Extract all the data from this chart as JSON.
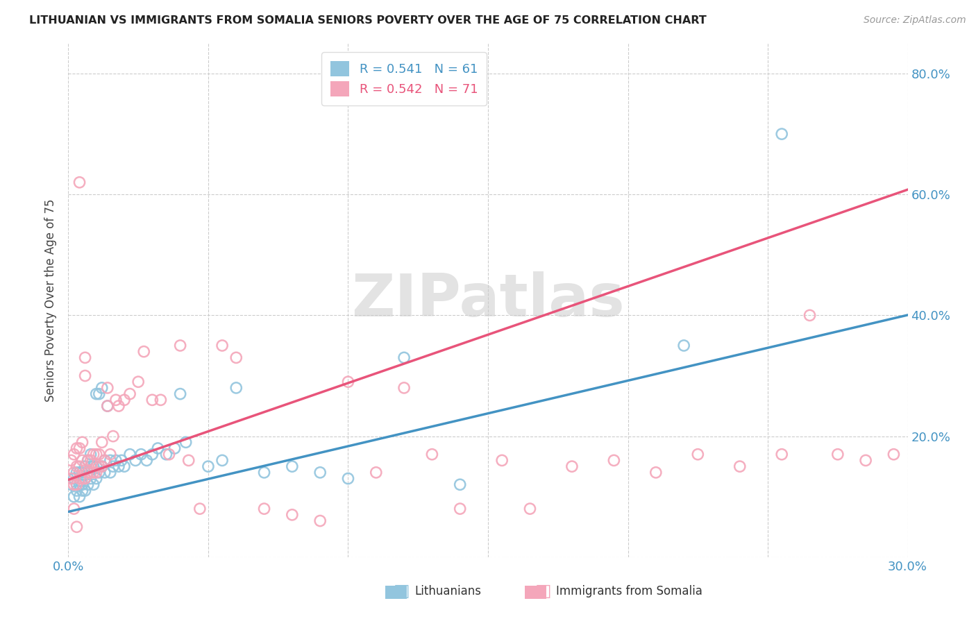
{
  "title": "LITHUANIAN VS IMMIGRANTS FROM SOMALIA SENIORS POVERTY OVER THE AGE OF 75 CORRELATION CHART",
  "source": "Source: ZipAtlas.com",
  "ylabel": "Seniors Poverty Over the Age of 75",
  "xlim": [
    0.0,
    0.3
  ],
  "ylim": [
    0.0,
    0.85
  ],
  "xticks": [
    0.0,
    0.05,
    0.1,
    0.15,
    0.2,
    0.25,
    0.3
  ],
  "yticks": [
    0.0,
    0.2,
    0.4,
    0.6,
    0.8
  ],
  "blue_color": "#92c5de",
  "pink_color": "#f4a6ba",
  "blue_line_color": "#4393c3",
  "pink_line_color": "#e8547a",
  "blue_line_intercept": 0.075,
  "blue_line_slope": 1.085,
  "pink_line_intercept": 0.128,
  "pink_line_slope": 1.6,
  "legend_label_blue": "Lithuanians",
  "legend_label_pink": "Immigrants from Somalia",
  "watermark": "ZIPatlas",
  "blue_scatter_x": [
    0.001,
    0.002,
    0.002,
    0.003,
    0.003,
    0.003,
    0.004,
    0.004,
    0.004,
    0.005,
    0.005,
    0.005,
    0.006,
    0.006,
    0.006,
    0.007,
    0.007,
    0.007,
    0.008,
    0.008,
    0.008,
    0.009,
    0.009,
    0.01,
    0.01,
    0.01,
    0.011,
    0.011,
    0.012,
    0.012,
    0.013,
    0.013,
    0.014,
    0.015,
    0.015,
    0.016,
    0.017,
    0.018,
    0.019,
    0.02,
    0.022,
    0.024,
    0.026,
    0.028,
    0.03,
    0.032,
    0.035,
    0.038,
    0.04,
    0.042,
    0.05,
    0.055,
    0.06,
    0.07,
    0.08,
    0.09,
    0.1,
    0.12,
    0.14,
    0.22,
    0.255
  ],
  "blue_scatter_y": [
    0.12,
    0.1,
    0.13,
    0.11,
    0.12,
    0.14,
    0.1,
    0.12,
    0.14,
    0.11,
    0.12,
    0.14,
    0.11,
    0.13,
    0.15,
    0.12,
    0.14,
    0.16,
    0.13,
    0.15,
    0.17,
    0.12,
    0.15,
    0.13,
    0.15,
    0.27,
    0.14,
    0.27,
    0.15,
    0.28,
    0.14,
    0.16,
    0.25,
    0.14,
    0.16,
    0.15,
    0.16,
    0.15,
    0.16,
    0.15,
    0.17,
    0.16,
    0.17,
    0.16,
    0.17,
    0.18,
    0.17,
    0.18,
    0.27,
    0.19,
    0.15,
    0.16,
    0.28,
    0.14,
    0.15,
    0.14,
    0.13,
    0.33,
    0.12,
    0.35,
    0.7
  ],
  "pink_scatter_x": [
    0.001,
    0.001,
    0.002,
    0.002,
    0.002,
    0.003,
    0.003,
    0.003,
    0.004,
    0.004,
    0.004,
    0.005,
    0.005,
    0.005,
    0.006,
    0.006,
    0.006,
    0.007,
    0.007,
    0.008,
    0.008,
    0.009,
    0.009,
    0.01,
    0.01,
    0.011,
    0.011,
    0.012,
    0.012,
    0.013,
    0.014,
    0.014,
    0.015,
    0.016,
    0.017,
    0.018,
    0.02,
    0.022,
    0.025,
    0.027,
    0.03,
    0.033,
    0.036,
    0.04,
    0.043,
    0.047,
    0.055,
    0.06,
    0.07,
    0.08,
    0.09,
    0.1,
    0.11,
    0.12,
    0.13,
    0.14,
    0.155,
    0.165,
    0.18,
    0.195,
    0.21,
    0.225,
    0.24,
    0.255,
    0.265,
    0.275,
    0.285,
    0.295,
    0.002,
    0.003,
    0.004
  ],
  "pink_scatter_y": [
    0.13,
    0.16,
    0.12,
    0.14,
    0.17,
    0.12,
    0.15,
    0.18,
    0.13,
    0.15,
    0.18,
    0.13,
    0.16,
    0.19,
    0.13,
    0.3,
    0.33,
    0.14,
    0.16,
    0.14,
    0.16,
    0.14,
    0.17,
    0.14,
    0.17,
    0.15,
    0.17,
    0.15,
    0.19,
    0.16,
    0.25,
    0.28,
    0.17,
    0.2,
    0.26,
    0.25,
    0.26,
    0.27,
    0.29,
    0.34,
    0.26,
    0.26,
    0.17,
    0.35,
    0.16,
    0.08,
    0.35,
    0.33,
    0.08,
    0.07,
    0.06,
    0.29,
    0.14,
    0.28,
    0.17,
    0.08,
    0.16,
    0.08,
    0.15,
    0.16,
    0.14,
    0.17,
    0.15,
    0.17,
    0.4,
    0.17,
    0.16,
    0.17,
    0.08,
    0.05,
    0.62
  ]
}
